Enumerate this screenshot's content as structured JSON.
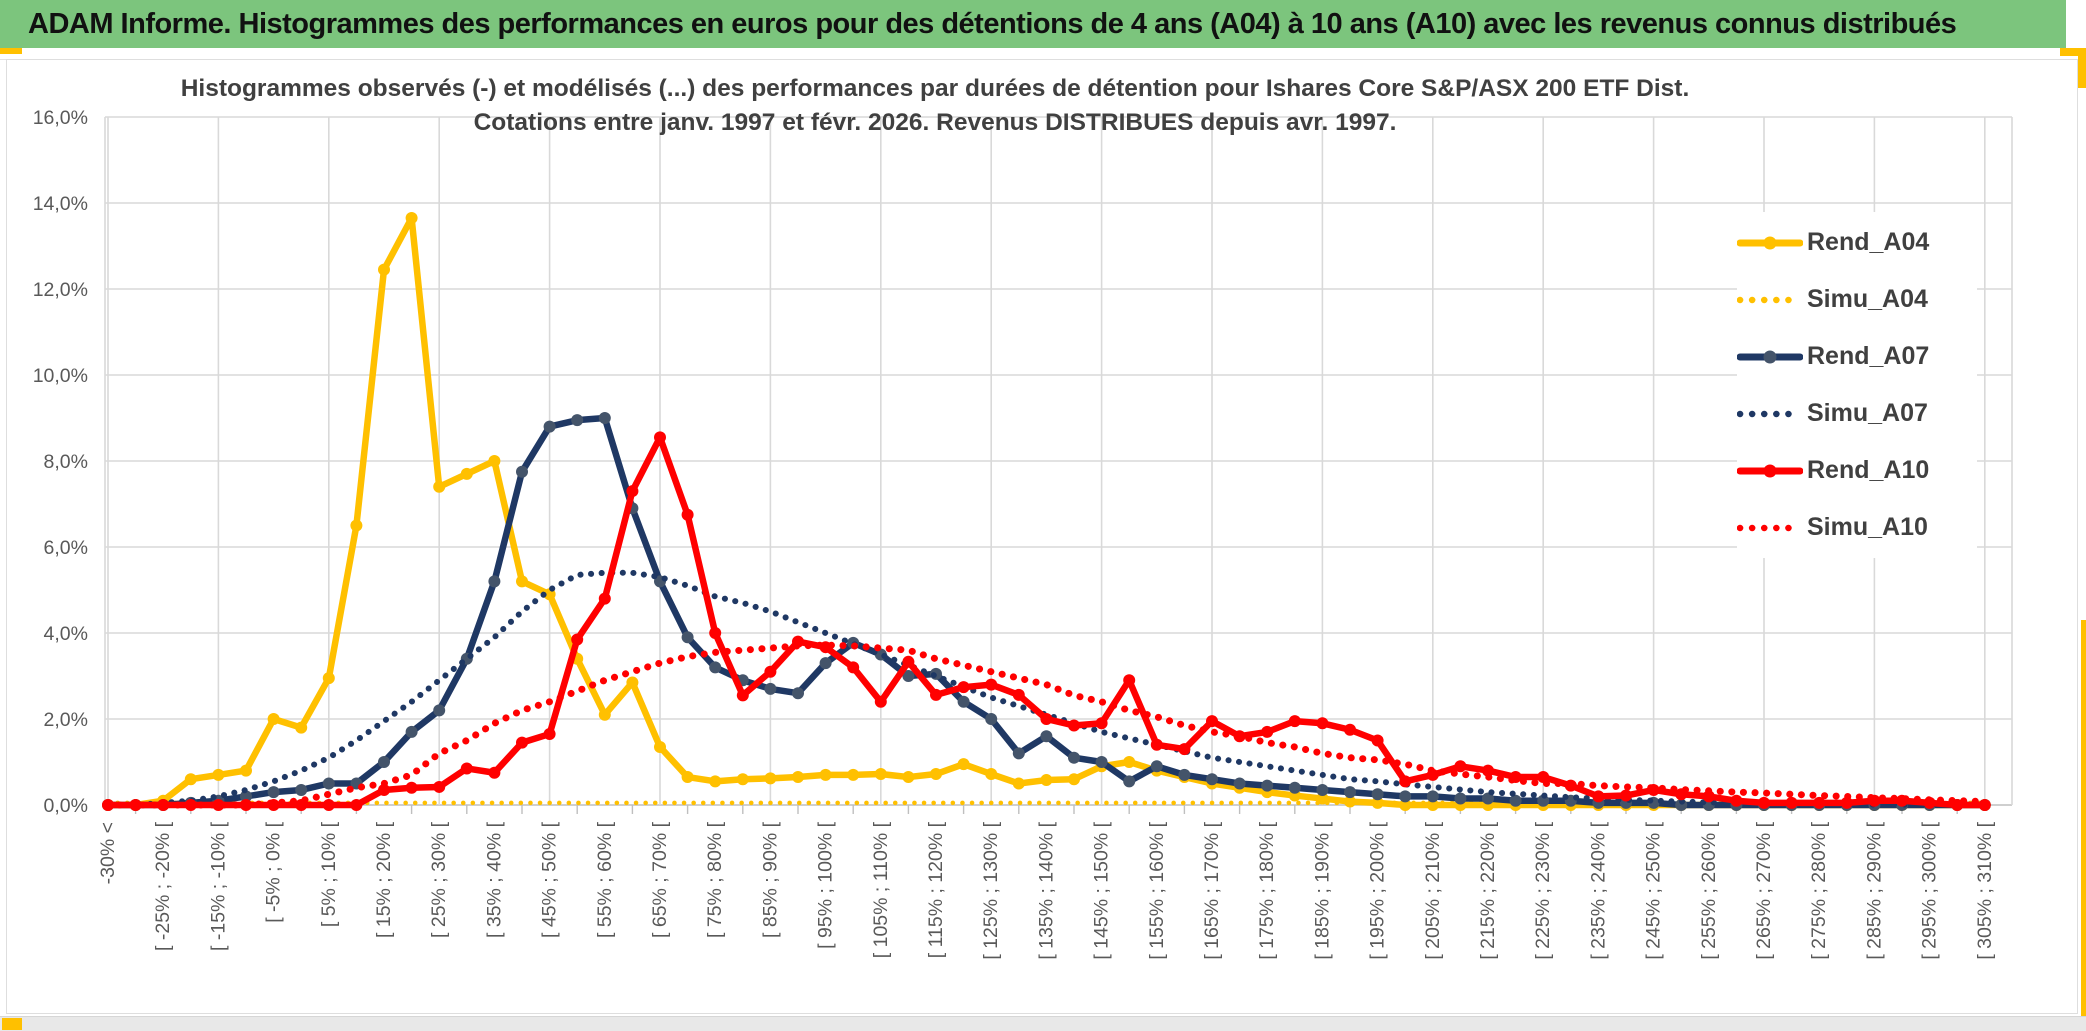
{
  "header": {
    "title": "ADAM Informe. Histogrammes des performances en euros pour des détentions de 4 ans (A04) à 10 ans (A10) avec les revenus connus distribués"
  },
  "chart": {
    "title_line1": "Histogrammes observés (-) et modélisés (...) des performances par durées de détention pour Ishares Core S&P/ASX 200 ETF Dist.",
    "title_line2": "Cotations entre janv. 1997 et févr. 2026. Revenus DISTRIBUES depuis avr. 1997.",
    "colors": {
      "header_green": "#7CC57D",
      "accent_gold": "#FFC000",
      "grid": "#D9D9D9",
      "axis_line": "#BFBFBF",
      "axis_text": "#595959",
      "title_text": "#404040",
      "series_gold": "#FFC000",
      "series_navy": "#1F3864",
      "series_navy_marker": "#44546A",
      "series_red": "#FF0000"
    }
  },
  "chart_data": {
    "type": "line",
    "title": "Histogrammes observés (-) et modélisés (...) des performances par durées de détention pour Ishares Core S&P/ASX 200 ETF Dist. Cotations entre janv. 1997 et févr. 2026. Revenus DISTRIBUES depuis avr. 1997.",
    "xlabel": "",
    "ylabel": "",
    "grid": true,
    "legend_position": "right",
    "ylim_percent": [
      0,
      16
    ],
    "y_tick_labels": [
      "0,0%",
      "2,0%",
      "4,0%",
      "6,0%",
      "8,0%",
      "10,0%",
      "12,0%",
      "14,0%",
      "16,0%"
    ],
    "n_bins": 69,
    "bins_per_label": 2,
    "x_tick_labels": [
      "-30% <",
      "[ -25% ; -20% [",
      "[ -15% ; -10% [",
      "[ -5% ; 0% [",
      "[ 5% ; 10% [",
      "[ 15% ; 20% [",
      "[ 25% ; 30% [",
      "[ 35% ; 40% [",
      "[ 45% ; 50% [",
      "[ 55% ; 60% [",
      "[ 65% ; 70% [",
      "[ 75% ; 80% [",
      "[ 85% ; 90% [",
      "[ 95% ; 100% [",
      "[ 105% ; 110% [",
      "[ 115% ; 120% [",
      "[ 125% ; 130% [",
      "[ 135% ; 140% [",
      "[ 145% ; 150% [",
      "[ 155% ; 160% [",
      "[ 165% ; 170% [",
      "[ 175% ; 180% [",
      "[ 185% ; 190% [",
      "[ 195% ; 200% [",
      "[ 205% ; 210% [",
      "[ 215% ; 220% [",
      "[ 225% ; 230% [",
      "[ 235% ; 240% [",
      "[ 245% ; 250% [",
      "[ 255% ; 260% [",
      "[ 265% ; 270% [",
      "[ 275% ; 280% [",
      "[ 285% ; 290% [",
      "[ 295% ; 300% [",
      "[ 305% ; 310% ["
    ],
    "series": [
      {
        "name": "Rend_A04",
        "color": "#FFC000",
        "marker_color": "#FFC000",
        "style": "solid",
        "marker": true,
        "values_percent": [
          0,
          0,
          0.1,
          0.6,
          0.7,
          0.8,
          2.0,
          1.8,
          2.95,
          6.5,
          12.45,
          13.65,
          7.4,
          7.7,
          8.0,
          5.2,
          4.9,
          3.4,
          2.1,
          2.85,
          1.35,
          0.65,
          0.55,
          0.6,
          0.62,
          0.65,
          0.7,
          0.7,
          0.72,
          0.65,
          0.72,
          0.95,
          0.72,
          0.5,
          0.58,
          0.6,
          0.9,
          1.0,
          0.8,
          0.65,
          0.5,
          0.4,
          0.3,
          0.22,
          0.15,
          0.08,
          0.05,
          0,
          0,
          0,
          0,
          0,
          0,
          0,
          0,
          0,
          0,
          0,
          0,
          0,
          0,
          0,
          0,
          0,
          0,
          0,
          0,
          0,
          0
        ]
      },
      {
        "name": "Simu_A04",
        "color": "#FFC000",
        "style": "dotted",
        "marker": false,
        "values_percent": [
          0.05,
          0.05,
          0.05,
          0.05,
          0.05,
          0.05,
          0.05,
          0.05,
          0.05,
          0.05,
          0.05,
          0.05,
          0.05,
          0.05,
          0.05,
          0.05,
          0.05,
          0.05,
          0.05,
          0.05,
          0.05,
          0.05,
          0.05,
          0.05,
          0.05,
          0.05,
          0.05,
          0.05,
          0.05,
          0.05,
          0.05,
          0.05,
          0.05,
          0.05,
          0.05,
          0.05,
          0.05,
          0.05,
          0.05,
          0.05,
          0.05,
          0.05,
          0.05,
          0.05,
          0.05,
          0.05,
          0.05,
          0.05,
          0.05,
          0.05,
          0.05,
          0.05,
          0.05,
          0.05,
          0.05,
          0.05,
          0.05,
          0.05,
          0.05,
          0.05,
          0.05,
          0.05,
          0.05,
          0.05,
          0.05,
          0.05,
          0.05,
          0.05,
          0.05
        ]
      },
      {
        "name": "Rend_A07",
        "color": "#1F3864",
        "marker_color": "#44546A",
        "style": "solid",
        "marker": true,
        "values_percent": [
          0,
          0,
          0,
          0.05,
          0.1,
          0.2,
          0.3,
          0.35,
          0.5,
          0.5,
          1.0,
          1.7,
          2.2,
          3.4,
          5.2,
          7.75,
          8.8,
          8.95,
          9.0,
          6.9,
          5.2,
          3.9,
          3.2,
          2.9,
          2.7,
          2.6,
          3.3,
          3.77,
          3.5,
          3.0,
          3.05,
          2.4,
          2.0,
          1.2,
          1.6,
          1.1,
          1.0,
          0.55,
          0.9,
          0.7,
          0.6,
          0.5,
          0.45,
          0.4,
          0.35,
          0.3,
          0.25,
          0.2,
          0.2,
          0.15,
          0.15,
          0.1,
          0.1,
          0.1,
          0.05,
          0.05,
          0.05,
          0,
          0,
          0,
          0,
          0,
          0,
          0,
          0,
          0,
          0,
          0,
          0
        ]
      },
      {
        "name": "Simu_A07",
        "color": "#1F3864",
        "style": "dotted",
        "marker": false,
        "values_percent": [
          0,
          0,
          0.05,
          0.1,
          0.2,
          0.35,
          0.55,
          0.8,
          1.1,
          1.5,
          1.95,
          2.4,
          2.9,
          3.4,
          3.9,
          4.5,
          5.0,
          5.35,
          5.4,
          5.4,
          5.3,
          5.1,
          4.85,
          4.7,
          4.5,
          4.25,
          4.0,
          3.75,
          3.5,
          3.25,
          3.0,
          2.75,
          2.5,
          2.3,
          2.1,
          1.9,
          1.7,
          1.55,
          1.4,
          1.25,
          1.1,
          1.0,
          0.9,
          0.8,
          0.7,
          0.6,
          0.55,
          0.48,
          0.42,
          0.36,
          0.3,
          0.26,
          0.22,
          0.18,
          0.15,
          0.12,
          0.1,
          0.08,
          0.06,
          0.05,
          0.04,
          0.03,
          0.02,
          0.02,
          0.01,
          0.01,
          0.01,
          0,
          0
        ]
      },
      {
        "name": "Rend_A10",
        "color": "#FF0000",
        "marker_color": "#FF0000",
        "style": "solid",
        "marker": true,
        "values_percent": [
          0,
          0,
          0,
          0,
          0,
          0,
          0,
          0,
          0,
          0,
          0.35,
          0.4,
          0.42,
          0.85,
          0.75,
          1.45,
          1.65,
          3.85,
          4.8,
          7.3,
          8.55,
          6.75,
          4.0,
          2.55,
          3.1,
          3.8,
          3.67,
          3.2,
          2.4,
          3.33,
          2.56,
          2.74,
          2.8,
          2.56,
          2.0,
          1.85,
          1.9,
          2.9,
          1.4,
          1.3,
          1.95,
          1.6,
          1.7,
          1.95,
          1.9,
          1.75,
          1.5,
          0.55,
          0.7,
          0.9,
          0.8,
          0.65,
          0.65,
          0.45,
          0.2,
          0.22,
          0.35,
          0.25,
          0.2,
          0.1,
          0.05,
          0.05,
          0.05,
          0.05,
          0.1,
          0.1,
          0.05,
          0,
          0
        ]
      },
      {
        "name": "Simu_A10",
        "color": "#FF0000",
        "style": "dotted",
        "marker": false,
        "values_percent": [
          0,
          0,
          0,
          0,
          0,
          0,
          0.05,
          0.1,
          0.25,
          0.4,
          0.5,
          0.7,
          1.2,
          1.5,
          1.9,
          2.2,
          2.4,
          2.65,
          2.9,
          3.1,
          3.3,
          3.45,
          3.55,
          3.6,
          3.65,
          3.7,
          3.72,
          3.7,
          3.65,
          3.6,
          3.4,
          3.25,
          3.1,
          2.95,
          2.8,
          2.55,
          2.4,
          2.2,
          2.05,
          1.85,
          1.7,
          1.6,
          1.45,
          1.35,
          1.2,
          1.1,
          1.05,
          0.95,
          0.8,
          0.72,
          0.65,
          0.57,
          0.5,
          0.5,
          0.45,
          0.42,
          0.4,
          0.36,
          0.33,
          0.3,
          0.28,
          0.25,
          0.22,
          0.2,
          0.17,
          0.15,
          0.12,
          0.1,
          0.08
        ]
      }
    ]
  }
}
